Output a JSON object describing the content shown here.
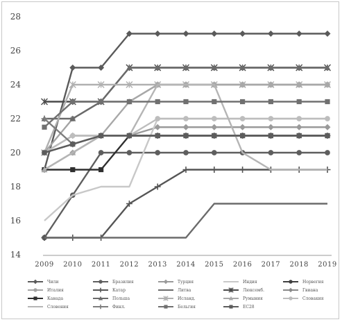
{
  "chart_data": {
    "type": "line",
    "title": "",
    "xlabel": "",
    "ylabel": "",
    "x": [
      "2009",
      "2010",
      "2011",
      "2012",
      "2013",
      "2014",
      "2015",
      "2016",
      "2017",
      "2018",
      "2019"
    ],
    "ylim": [
      14,
      28
    ],
    "yticks": [
      14,
      16,
      18,
      20,
      22,
      24,
      26,
      28
    ],
    "grid": false,
    "legend_position": "bottom",
    "series": [
      {
        "name": "Чили",
        "color": "#5a5a5a",
        "marker": "diamond",
        "values": [
          19,
          25,
          25,
          27,
          27,
          27,
          27,
          27,
          27,
          27,
          27
        ]
      },
      {
        "name": "Бразилия",
        "color": "#5e5e5e",
        "marker": "circle",
        "values": [
          15,
          17.5,
          20,
          20,
          20,
          20,
          20,
          20,
          20,
          20,
          20
        ]
      },
      {
        "name": "Турция",
        "color": "#9a9a9a",
        "marker": "diamond",
        "values": [
          19,
          20,
          21,
          21,
          21.5,
          21.5,
          21.5,
          21.5,
          21.5,
          21.5,
          21.5
        ]
      },
      {
        "name": "Индия",
        "color": "#c8c8c8",
        "marker": "none",
        "values": [
          16,
          17.5,
          18,
          18,
          22,
          22,
          22,
          22,
          22,
          22,
          22
        ]
      },
      {
        "name": "Норвегия",
        "color": "#404040",
        "marker": "circle",
        "values": [
          20,
          20.5,
          21,
          21,
          21,
          21,
          21,
          21,
          21,
          21,
          21
        ]
      },
      {
        "name": "Италия",
        "color": "#a4a4a4",
        "marker": "circle",
        "values": [
          20,
          22,
          23,
          23,
          24,
          24,
          24,
          24,
          24,
          24,
          24
        ]
      },
      {
        "name": "Катар",
        "color": "#555555",
        "marker": "plus",
        "values": [
          15,
          15,
          15,
          17,
          18,
          19,
          19,
          19,
          19,
          19,
          19
        ]
      },
      {
        "name": "Литва",
        "color": "#6b6b6b",
        "marker": "none",
        "values": [
          15,
          15,
          15,
          15,
          15,
          15,
          17,
          17,
          17,
          17,
          17
        ]
      },
      {
        "name": "Люксемб.",
        "color": "#4a4a4a",
        "marker": "star",
        "values": [
          23,
          23,
          23,
          25,
          25,
          25,
          25,
          25,
          25,
          25,
          25
        ]
      },
      {
        "name": "Гвиана",
        "color": "#888888",
        "marker": "diamond",
        "values": [
          20,
          21,
          21,
          21,
          21,
          21,
          21,
          21,
          21,
          21,
          21
        ]
      },
      {
        "name": "Канада",
        "color": "#2f2f2f",
        "marker": "square",
        "values": [
          19,
          19,
          19,
          21,
          21,
          21,
          21,
          21,
          21,
          21,
          21
        ]
      },
      {
        "name": "Польша",
        "color": "#6a6a6a",
        "marker": "triangle",
        "values": [
          22,
          22,
          23,
          25,
          25,
          25,
          25,
          25,
          25,
          25,
          25
        ]
      },
      {
        "name": "Исланд.",
        "color": "#b0b0b0",
        "marker": "star",
        "values": [
          20,
          24,
          24,
          24,
          24,
          24,
          24,
          24,
          24,
          24,
          24
        ]
      },
      {
        "name": "Румыния",
        "color": "#a8a8a8",
        "marker": "triangle",
        "values": [
          19,
          20,
          21,
          23,
          24,
          24,
          24,
          24,
          24,
          24,
          24
        ]
      },
      {
        "name": "Словакия",
        "color": "#bdbdbd",
        "marker": "circle",
        "values": [
          20,
          21,
          21,
          21,
          22,
          22,
          22,
          22,
          22,
          22,
          22
        ]
      },
      {
        "name": "Словения",
        "color": "#b5b5b5",
        "marker": "none",
        "values": [
          19,
          20,
          21,
          21,
          24,
          24,
          24,
          20,
          19,
          19,
          19
        ]
      },
      {
        "name": "Финл.",
        "color": "#7d7d7d",
        "marker": "plus",
        "values": [
          22,
          20.5,
          21,
          21,
          21,
          21,
          21,
          21,
          21,
          21,
          21
        ]
      },
      {
        "name": "Бельгия",
        "color": "#707070",
        "marker": "square",
        "values": [
          21.5,
          23,
          23,
          23,
          23,
          23,
          23,
          23,
          23,
          23,
          23
        ]
      },
      {
        "name": "ЕС28",
        "color": "#5c5c5c",
        "marker": "square",
        "values": [
          20,
          20.5,
          21,
          21,
          21,
          21,
          21,
          21,
          21,
          21,
          21
        ]
      }
    ]
  }
}
